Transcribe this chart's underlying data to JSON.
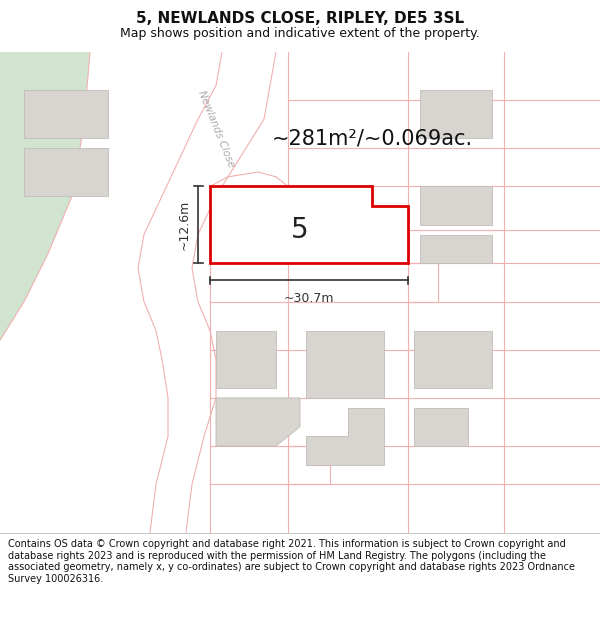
{
  "title": "5, NEWLANDS CLOSE, RIPLEY, DE5 3SL",
  "subtitle": "Map shows position and indicative extent of the property.",
  "area_text": "~281m²/~0.069ac.",
  "label_5": "5",
  "dim_h": "~12.6m",
  "dim_w": "~30.7m",
  "road_label": "Newlands Close",
  "footer": "Contains OS data © Crown copyright and database right 2021. This information is subject to Crown copyright and database rights 2023 and is reproduced with the permission of HM Land Registry. The polygons (including the associated geometry, namely x, y co-ordinates) are subject to Crown copyright and database rights 2023 Ordnance Survey 100026316.",
  "bg_color": "#ffffff",
  "map_bg": "#f7f3f0",
  "road_fill": "#ffffff",
  "boundary_color": "#f0b0b0",
  "highlight_color": "#dd0000",
  "building_fill": "#d8d4d0",
  "building_edge": "#c0bcb8",
  "green_color": "#d0e4d0",
  "dim_color": "#333333",
  "title_fontsize": 11,
  "subtitle_fontsize": 9,
  "footer_fontsize": 7.0,
  "area_fontsize": 15,
  "label_fontsize": 20,
  "dim_fontsize": 9
}
